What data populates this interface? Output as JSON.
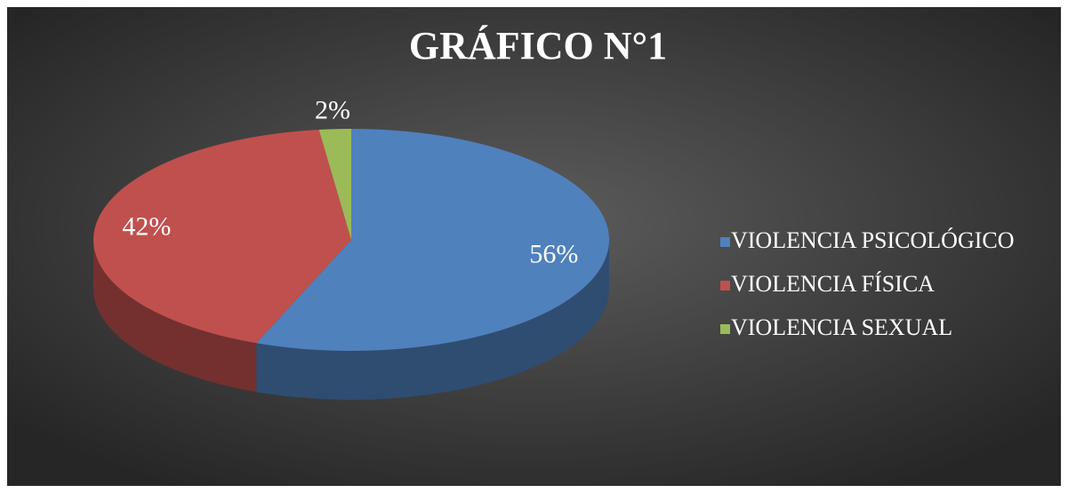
{
  "chart_data": {
    "type": "pie",
    "title": "GRÁFICO N°1",
    "categories": [
      "VIOLENCIA PSICOLÓGICO",
      "VIOLENCIA FÍSICA",
      "VIOLENCIA SEXUAL"
    ],
    "values": [
      56,
      42,
      2
    ],
    "value_labels": [
      "56%",
      "42%",
      "2%"
    ],
    "colors": [
      "#4f81bd",
      "#c0504d",
      "#9bbb59"
    ],
    "legend": "right"
  }
}
